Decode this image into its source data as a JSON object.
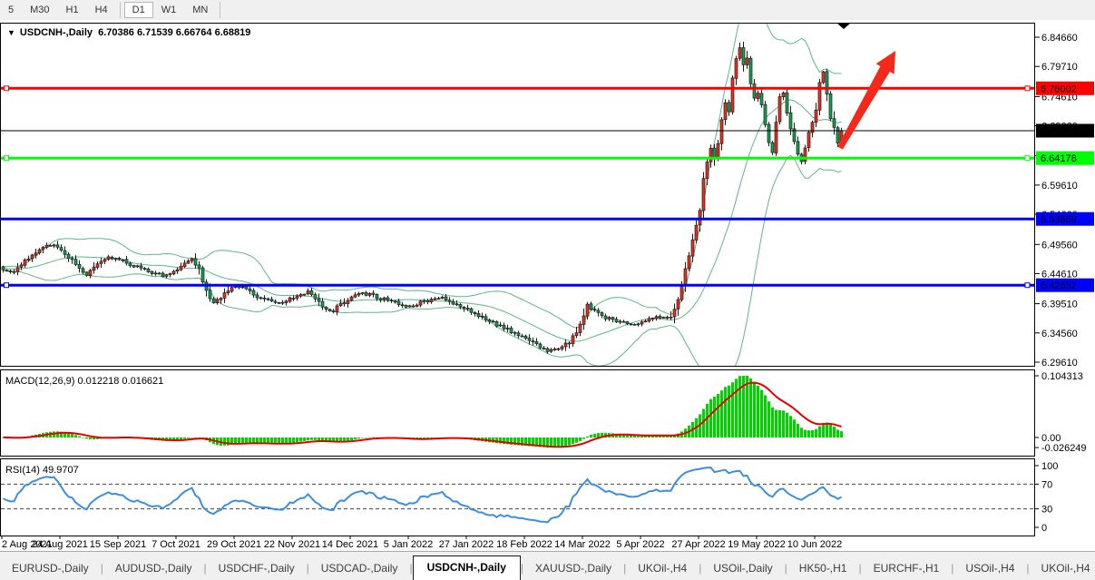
{
  "toolbar": {
    "timeframes": [
      "5",
      "M30",
      "H1",
      "H4",
      "D1",
      "W1",
      "MN"
    ],
    "active": "D1",
    "separators_after": [
      3,
      6
    ]
  },
  "chart": {
    "title": "USDCNH-,Daily",
    "quotes": "6.70386 6.71539 6.66764 6.68819"
  },
  "macd_panel": {
    "label": "MACD(12,26,9) 0.012218 0.016621",
    "axis_max": "0.104313",
    "axis_zero": "0.00",
    "axis_min": "-0.026249"
  },
  "rsi_panel": {
    "label": "RSI(14) 49.9707",
    "axis": [
      "100",
      "70",
      "30",
      "0"
    ],
    "guides": [
      70,
      30
    ]
  },
  "tabs": {
    "items": [
      "EURUSD-,Daily",
      "AUDUSD-,Daily",
      "USDCHF-,Daily",
      "USDCAD-,Daily",
      "USDCNH-,Daily",
      "XAUUSD-,Daily",
      "UKOil-,H4",
      "USOil-,Daily",
      "HK50-,H1",
      "EURCHF-,H1",
      "USOil-,H4",
      "UKOil-,H4"
    ],
    "active": "USDCNH-,Daily",
    "scroll_left": "◄",
    "scroll_right": "►"
  },
  "colors": {
    "bull_candle": "#ea2e1f",
    "bear_candle": "#10a24e",
    "candle_outline": "#1c1c1c",
    "bollinger": "#5eb786",
    "macd_histogram": "#00d300",
    "macd_signal": "#e60000",
    "rsi_line": "#3e8ede",
    "level_red": "#ff0000",
    "level_green": "#00ff00",
    "level_blue": "#0000ff",
    "current_price_line": "#000000",
    "arrow": "#f4291b",
    "marker": "#000000"
  },
  "chart_data": {
    "type": "candlestick",
    "symbol": "USDCNH-",
    "timeframe": "Daily",
    "quote_open": "6.70386",
    "quote_high": "6.71539",
    "quote_low": "6.66764",
    "quote_close": "6.68819",
    "current_price": 6.68819,
    "bars_total": 232,
    "y_axis_ticks": [
      "6.84660",
      "6.79710",
      "6.74610",
      "6.69660",
      "6.64560",
      "6.59610",
      "6.54660",
      "6.49560",
      "6.44610",
      "6.39510",
      "6.34560",
      "6.29610"
    ],
    "x_axis_dates": [
      "2 Aug 2021",
      "24 Aug 2021",
      "15 Sep 2021",
      "7 Oct 2021",
      "29 Oct 2021",
      "22 Nov 2021",
      "14 Dec 2021",
      "5 Jan 2022",
      "27 Jan 2022",
      "18 Feb 2022",
      "14 Mar 2022",
      "5 Apr 2022",
      "27 Apr 2022",
      "19 May 2022",
      "10 Jun 2022"
    ],
    "levels": [
      {
        "price": 6.76002,
        "label": "6.76002",
        "color": "#ff0000",
        "width": 3,
        "handles": true
      },
      {
        "price": 6.68819,
        "label": "6.68819",
        "color": "#000000",
        "width": 1,
        "handles": false,
        "role": "current-price"
      },
      {
        "price": 6.64178,
        "label": "6.64178",
        "color": "#00ff00",
        "width": 3,
        "handles": true
      },
      {
        "price": 6.53869,
        "label": "6.53869",
        "color": "#0000ff",
        "width": 3,
        "handles": false
      },
      {
        "price": 6.42652,
        "label": "6.42652",
        "color": "#0000ff",
        "width": 3,
        "handles": true
      }
    ],
    "indicators": [
      {
        "name": "Bollinger Bands",
        "period": 20,
        "deviation": 2
      },
      {
        "name": "MACD",
        "fast": 12,
        "slow": 26,
        "signal": 9,
        "current_main": 0.012218,
        "current_signal": 0.016621
      },
      {
        "name": "RSI",
        "period": 14,
        "current": 49.9707
      }
    ],
    "price_path_anchors": [
      [
        0,
        6.455
      ],
      [
        2,
        6.447
      ],
      [
        5,
        6.462
      ],
      [
        8,
        6.477
      ],
      [
        11,
        6.489
      ],
      [
        13,
        6.496
      ],
      [
        16,
        6.484
      ],
      [
        19,
        6.468
      ],
      [
        21,
        6.455
      ],
      [
        23,
        6.444
      ],
      [
        26,
        6.46
      ],
      [
        29,
        6.473
      ],
      [
        32,
        6.47
      ],
      [
        35,
        6.462
      ],
      [
        38,
        6.455
      ],
      [
        41,
        6.448
      ],
      [
        44,
        6.443
      ],
      [
        47,
        6.45
      ],
      [
        50,
        6.462
      ],
      [
        52,
        6.47
      ],
      [
        54,
        6.455
      ],
      [
        56,
        6.415
      ],
      [
        58,
        6.398
      ],
      [
        60,
        6.405
      ],
      [
        62,
        6.418
      ],
      [
        64,
        6.427
      ],
      [
        67,
        6.418
      ],
      [
        70,
        6.408
      ],
      [
        73,
        6.4
      ],
      [
        76,
        6.396
      ],
      [
        80,
        6.406
      ],
      [
        84,
        6.414
      ],
      [
        87,
        6.397
      ],
      [
        90,
        6.38
      ],
      [
        93,
        6.393
      ],
      [
        96,
        6.407
      ],
      [
        100,
        6.412
      ],
      [
        104,
        6.404
      ],
      [
        108,
        6.397
      ],
      [
        112,
        6.39
      ],
      [
        116,
        6.399
      ],
      [
        120,
        6.406
      ],
      [
        124,
        6.397
      ],
      [
        128,
        6.384
      ],
      [
        132,
        6.372
      ],
      [
        136,
        6.36
      ],
      [
        140,
        6.348
      ],
      [
        144,
        6.338
      ],
      [
        147,
        6.325
      ],
      [
        150,
        6.313
      ],
      [
        153,
        6.318
      ],
      [
        156,
        6.33
      ],
      [
        159,
        6.358
      ],
      [
        161,
        6.392
      ],
      [
        163,
        6.384
      ],
      [
        166,
        6.372
      ],
      [
        169,
        6.366
      ],
      [
        172,
        6.36
      ],
      [
        176,
        6.365
      ],
      [
        180,
        6.371
      ],
      [
        184,
        6.374
      ],
      [
        186,
        6.4
      ],
      [
        188,
        6.452
      ],
      [
        190,
        6.505
      ],
      [
        192,
        6.556
      ],
      [
        193,
        6.606
      ],
      [
        194,
        6.633
      ],
      [
        195,
        6.659
      ],
      [
        196,
        6.641
      ],
      [
        197,
        6.669
      ],
      [
        198,
        6.709
      ],
      [
        199,
        6.734
      ],
      [
        200,
        6.721
      ],
      [
        201,
        6.776
      ],
      [
        202,
        6.809
      ],
      [
        203,
        6.826
      ],
      [
        204,
        6.801
      ],
      [
        205,
        6.812
      ],
      [
        206,
        6.768
      ],
      [
        207,
        6.744
      ],
      [
        208,
        6.753
      ],
      [
        209,
        6.731
      ],
      [
        210,
        6.699
      ],
      [
        211,
        6.671
      ],
      [
        212,
        6.654
      ],
      [
        213,
        6.701
      ],
      [
        214,
        6.743
      ],
      [
        215,
        6.753
      ],
      [
        216,
        6.719
      ],
      [
        217,
        6.689
      ],
      [
        218,
        6.667
      ],
      [
        219,
        6.647
      ],
      [
        220,
        6.637
      ],
      [
        221,
        6.661
      ],
      [
        222,
        6.687
      ],
      [
        223,
        6.702
      ],
      [
        224,
        6.721
      ],
      [
        225,
        6.767
      ],
      [
        226,
        6.787
      ],
      [
        227,
        6.751
      ],
      [
        228,
        6.711
      ],
      [
        229,
        6.691
      ],
      [
        230,
        6.666
      ],
      [
        231,
        6.68819
      ]
    ],
    "annotations": [
      {
        "type": "trend-arrow-up",
        "color": "#f4291b",
        "from_xy": [
          926,
          163
        ],
        "to_xy": [
          987,
          56
        ]
      },
      {
        "type": "triangle-down-marker",
        "color": "#000000",
        "xy": [
          930,
          28
        ]
      }
    ]
  }
}
